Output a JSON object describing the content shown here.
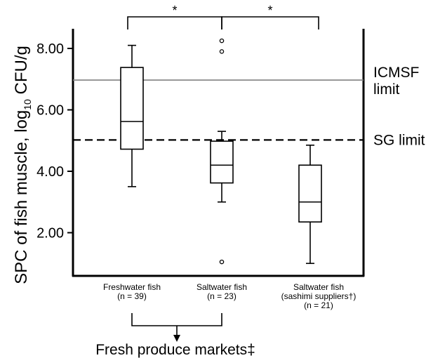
{
  "chart_data": {
    "type": "box",
    "ylabel": "SPC of fish muscle, log",
    "ylabel_sub": "10",
    "ylabel_unit": " CFU/g",
    "yticks": [
      "2.00",
      "4.00",
      "6.00",
      "8.00"
    ],
    "ylim": [
      0.3,
      8.8
    ],
    "categories": [
      {
        "lines": [
          "Freshwater fish",
          "(n = 39)"
        ],
        "whisker_low": 3.5,
        "q1": 4.72,
        "median": 5.62,
        "q3": 7.38,
        "whisker_high": 8.1,
        "outliers": []
      },
      {
        "lines": [
          "Saltwater fish",
          "(n = 23)"
        ],
        "whisker_low": 3.0,
        "q1": 3.62,
        "median": 4.2,
        "q3": 4.98,
        "whisker_high": 5.3,
        "outliers": [
          8.25,
          7.9,
          1.05
        ]
      },
      {
        "lines": [
          "Saltwater fish",
          "(sashimi suppliers†)",
          "(n = 21)"
        ],
        "whisker_low": 1.0,
        "q1": 2.35,
        "median": 3.0,
        "q3": 4.2,
        "whisker_high": 4.85,
        "outliers": []
      }
    ],
    "reference_lines": [
      {
        "value": 6.97,
        "style": "solid",
        "color": "#808080",
        "label_lines": [
          "ICMSF",
          "limit"
        ]
      },
      {
        "value": 5.02,
        "style": "dashed",
        "color": "#000000",
        "label_lines": [
          "SG limit"
        ]
      }
    ],
    "significance": [
      {
        "from": 0,
        "to": 1,
        "label": "*"
      },
      {
        "from": 1,
        "to": 2,
        "label": "*"
      }
    ],
    "group_bracket": {
      "from": 0,
      "to": 1,
      "label": "Fresh produce markets‡"
    }
  }
}
